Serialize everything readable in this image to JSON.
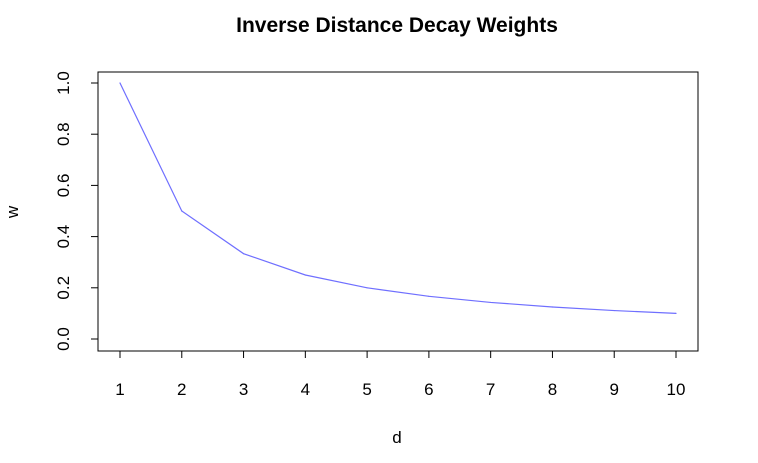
{
  "chart_data": {
    "type": "line",
    "title": "Inverse Distance Decay Weights",
    "xlabel": "d",
    "ylabel": "w",
    "x": [
      1,
      2,
      3,
      4,
      5,
      6,
      7,
      8,
      9,
      10
    ],
    "series": [
      {
        "values": [
          1.0,
          0.5,
          0.3333,
          0.25,
          0.2,
          0.1667,
          0.1429,
          0.125,
          0.1111,
          0.1
        ],
        "color": "#6f6fff"
      }
    ],
    "xticks": [
      "1",
      "2",
      "3",
      "4",
      "5",
      "6",
      "7",
      "8",
      "9",
      "10"
    ],
    "yticks": [
      "0.0",
      "0.2",
      "0.4",
      "0.6",
      "0.8",
      "1.0"
    ],
    "xlim": [
      1,
      10
    ],
    "ylim": [
      0,
      1
    ],
    "grid": false,
    "legend": "none"
  }
}
